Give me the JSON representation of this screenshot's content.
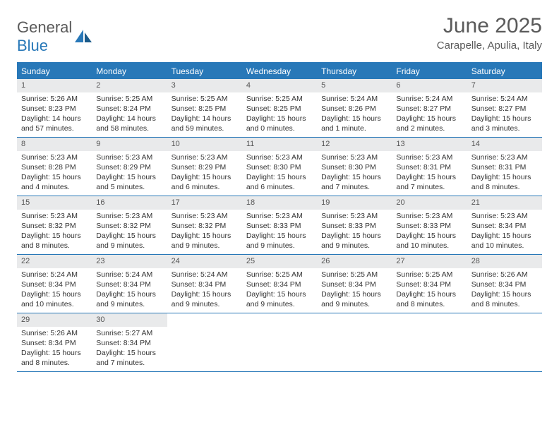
{
  "logo": {
    "line1": "General",
    "line2": "Blue"
  },
  "title": "June 2025",
  "location": "Carapelle, Apulia, Italy",
  "colors": {
    "header_blue": "#2878b8",
    "daynum_bg": "#e9eaeb",
    "text": "#333333",
    "logo_gray": "#5a5a5a"
  },
  "weekdays": [
    "Sunday",
    "Monday",
    "Tuesday",
    "Wednesday",
    "Thursday",
    "Friday",
    "Saturday"
  ],
  "labels": {
    "sunrise": "Sunrise:",
    "sunset": "Sunset:",
    "daylight": "Daylight:"
  },
  "weeks": [
    [
      {
        "n": 1,
        "sr": "5:26 AM",
        "ss": "8:23 PM",
        "dl": "14 hours and 57 minutes."
      },
      {
        "n": 2,
        "sr": "5:25 AM",
        "ss": "8:24 PM",
        "dl": "14 hours and 58 minutes."
      },
      {
        "n": 3,
        "sr": "5:25 AM",
        "ss": "8:25 PM",
        "dl": "14 hours and 59 minutes."
      },
      {
        "n": 4,
        "sr": "5:25 AM",
        "ss": "8:25 PM",
        "dl": "15 hours and 0 minutes."
      },
      {
        "n": 5,
        "sr": "5:24 AM",
        "ss": "8:26 PM",
        "dl": "15 hours and 1 minute."
      },
      {
        "n": 6,
        "sr": "5:24 AM",
        "ss": "8:27 PM",
        "dl": "15 hours and 2 minutes."
      },
      {
        "n": 7,
        "sr": "5:24 AM",
        "ss": "8:27 PM",
        "dl": "15 hours and 3 minutes."
      }
    ],
    [
      {
        "n": 8,
        "sr": "5:23 AM",
        "ss": "8:28 PM",
        "dl": "15 hours and 4 minutes."
      },
      {
        "n": 9,
        "sr": "5:23 AM",
        "ss": "8:29 PM",
        "dl": "15 hours and 5 minutes."
      },
      {
        "n": 10,
        "sr": "5:23 AM",
        "ss": "8:29 PM",
        "dl": "15 hours and 6 minutes."
      },
      {
        "n": 11,
        "sr": "5:23 AM",
        "ss": "8:30 PM",
        "dl": "15 hours and 6 minutes."
      },
      {
        "n": 12,
        "sr": "5:23 AM",
        "ss": "8:30 PM",
        "dl": "15 hours and 7 minutes."
      },
      {
        "n": 13,
        "sr": "5:23 AM",
        "ss": "8:31 PM",
        "dl": "15 hours and 7 minutes."
      },
      {
        "n": 14,
        "sr": "5:23 AM",
        "ss": "8:31 PM",
        "dl": "15 hours and 8 minutes."
      }
    ],
    [
      {
        "n": 15,
        "sr": "5:23 AM",
        "ss": "8:32 PM",
        "dl": "15 hours and 8 minutes."
      },
      {
        "n": 16,
        "sr": "5:23 AM",
        "ss": "8:32 PM",
        "dl": "15 hours and 9 minutes."
      },
      {
        "n": 17,
        "sr": "5:23 AM",
        "ss": "8:32 PM",
        "dl": "15 hours and 9 minutes."
      },
      {
        "n": 18,
        "sr": "5:23 AM",
        "ss": "8:33 PM",
        "dl": "15 hours and 9 minutes."
      },
      {
        "n": 19,
        "sr": "5:23 AM",
        "ss": "8:33 PM",
        "dl": "15 hours and 9 minutes."
      },
      {
        "n": 20,
        "sr": "5:23 AM",
        "ss": "8:33 PM",
        "dl": "15 hours and 10 minutes."
      },
      {
        "n": 21,
        "sr": "5:23 AM",
        "ss": "8:34 PM",
        "dl": "15 hours and 10 minutes."
      }
    ],
    [
      {
        "n": 22,
        "sr": "5:24 AM",
        "ss": "8:34 PM",
        "dl": "15 hours and 10 minutes."
      },
      {
        "n": 23,
        "sr": "5:24 AM",
        "ss": "8:34 PM",
        "dl": "15 hours and 9 minutes."
      },
      {
        "n": 24,
        "sr": "5:24 AM",
        "ss": "8:34 PM",
        "dl": "15 hours and 9 minutes."
      },
      {
        "n": 25,
        "sr": "5:25 AM",
        "ss": "8:34 PM",
        "dl": "15 hours and 9 minutes."
      },
      {
        "n": 26,
        "sr": "5:25 AM",
        "ss": "8:34 PM",
        "dl": "15 hours and 9 minutes."
      },
      {
        "n": 27,
        "sr": "5:25 AM",
        "ss": "8:34 PM",
        "dl": "15 hours and 8 minutes."
      },
      {
        "n": 28,
        "sr": "5:26 AM",
        "ss": "8:34 PM",
        "dl": "15 hours and 8 minutes."
      }
    ],
    [
      {
        "n": 29,
        "sr": "5:26 AM",
        "ss": "8:34 PM",
        "dl": "15 hours and 8 minutes."
      },
      {
        "n": 30,
        "sr": "5:27 AM",
        "ss": "8:34 PM",
        "dl": "15 hours and 7 minutes."
      },
      null,
      null,
      null,
      null,
      null
    ]
  ]
}
